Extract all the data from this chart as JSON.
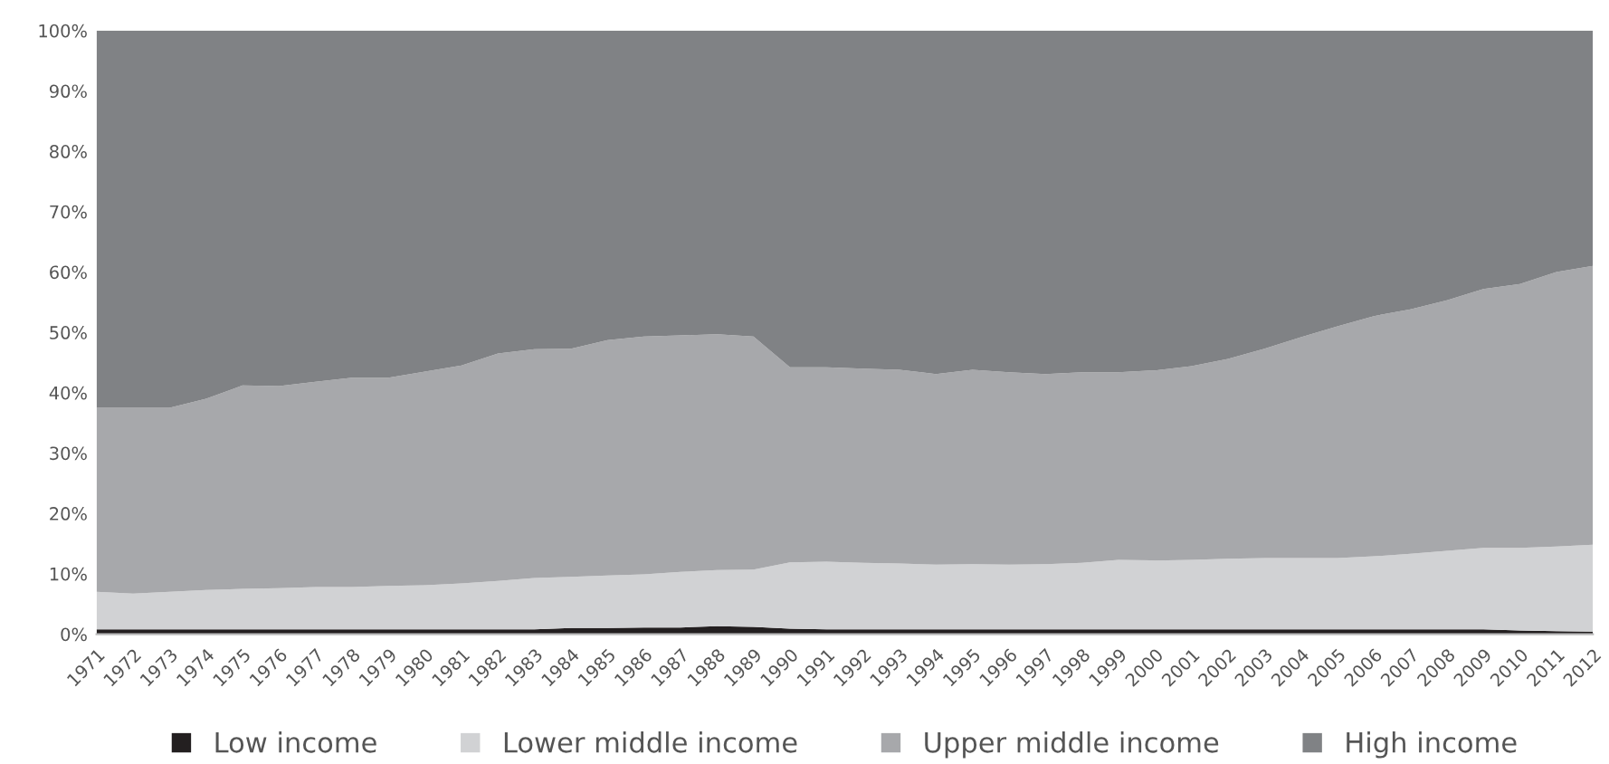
{
  "chart_data": {
    "type": "area",
    "stacked": true,
    "categories": [
      "1971",
      "1972",
      "1973",
      "1974",
      "1975",
      "1976",
      "1977",
      "1978",
      "1979",
      "1980",
      "1981",
      "1982",
      "1983",
      "1984",
      "1985",
      "1986",
      "1987",
      "1988",
      "1989",
      "1990",
      "1991",
      "1992",
      "1993",
      "1994",
      "1995",
      "1996",
      "1997",
      "1998",
      "1999",
      "2000",
      "2001",
      "2002",
      "2003",
      "2004",
      "2005",
      "2006",
      "2007",
      "2008",
      "2009",
      "2010",
      "2011",
      "2012"
    ],
    "series": [
      {
        "name": "Low income",
        "color": "#231f20",
        "values": [
          0.8,
          0.8,
          0.8,
          0.8,
          0.8,
          0.8,
          0.8,
          0.8,
          0.8,
          0.8,
          0.8,
          0.8,
          0.8,
          1.0,
          1.0,
          1.1,
          1.1,
          1.3,
          1.2,
          0.9,
          0.8,
          0.8,
          0.8,
          0.8,
          0.8,
          0.8,
          0.8,
          0.8,
          0.8,
          0.8,
          0.8,
          0.8,
          0.8,
          0.8,
          0.8,
          0.8,
          0.8,
          0.8,
          0.8,
          0.6,
          0.5,
          0.4
        ]
      },
      {
        "name": "Lower middle income",
        "color": "#d1d2d4",
        "values": [
          6.2,
          5.9,
          6.2,
          6.5,
          6.7,
          6.8,
          7.0,
          7.0,
          7.2,
          7.3,
          7.6,
          8.0,
          8.5,
          8.5,
          8.7,
          8.8,
          9.2,
          9.3,
          9.5,
          11.0,
          11.2,
          11.0,
          10.9,
          10.7,
          10.8,
          10.7,
          10.8,
          11.0,
          11.5,
          11.4,
          11.5,
          11.7,
          11.8,
          11.8,
          11.8,
          12.1,
          12.5,
          13.0,
          13.5,
          13.7,
          14.0,
          14.4
        ]
      },
      {
        "name": "Upper middle income",
        "color": "#a7a8ab",
        "values": [
          30.5,
          30.8,
          30.5,
          31.7,
          33.7,
          33.5,
          34.0,
          34.7,
          34.5,
          35.4,
          36.1,
          37.7,
          37.9,
          37.8,
          39.0,
          39.4,
          39.2,
          39.1,
          38.6,
          32.3,
          32.2,
          32.2,
          32.1,
          31.6,
          32.2,
          31.9,
          31.5,
          31.6,
          31.1,
          31.5,
          32.1,
          33.1,
          34.7,
          36.6,
          38.4,
          39.8,
          40.5,
          41.5,
          42.9,
          43.7,
          45.5,
          46.2
        ]
      },
      {
        "name": "High income",
        "color": "#808285",
        "values": [
          62.5,
          62.5,
          62.5,
          61.0,
          58.8,
          58.9,
          58.2,
          57.5,
          57.5,
          56.5,
          55.5,
          53.5,
          52.8,
          52.7,
          51.3,
          50.7,
          50.5,
          50.3,
          50.7,
          55.8,
          55.8,
          56.0,
          56.2,
          56.9,
          56.2,
          56.6,
          56.9,
          56.6,
          56.6,
          56.3,
          55.6,
          54.4,
          52.7,
          50.8,
          49.0,
          47.3,
          46.2,
          44.7,
          42.8,
          42.0,
          40.0,
          39.0
        ]
      }
    ],
    "ylim": [
      0,
      100
    ],
    "yticks": [
      {
        "value": 0,
        "label": "0%"
      },
      {
        "value": 10,
        "label": "10%"
      },
      {
        "value": 20,
        "label": "20%"
      },
      {
        "value": 30,
        "label": "30%"
      },
      {
        "value": 40,
        "label": "40%"
      },
      {
        "value": 50,
        "label": "50%"
      },
      {
        "value": 60,
        "label": "60%"
      },
      {
        "value": 70,
        "label": "70%"
      },
      {
        "value": 80,
        "label": "80%"
      },
      {
        "value": 90,
        "label": "90%"
      },
      {
        "value": 100,
        "label": "100%"
      }
    ],
    "grid": false,
    "legend": "bottom"
  }
}
